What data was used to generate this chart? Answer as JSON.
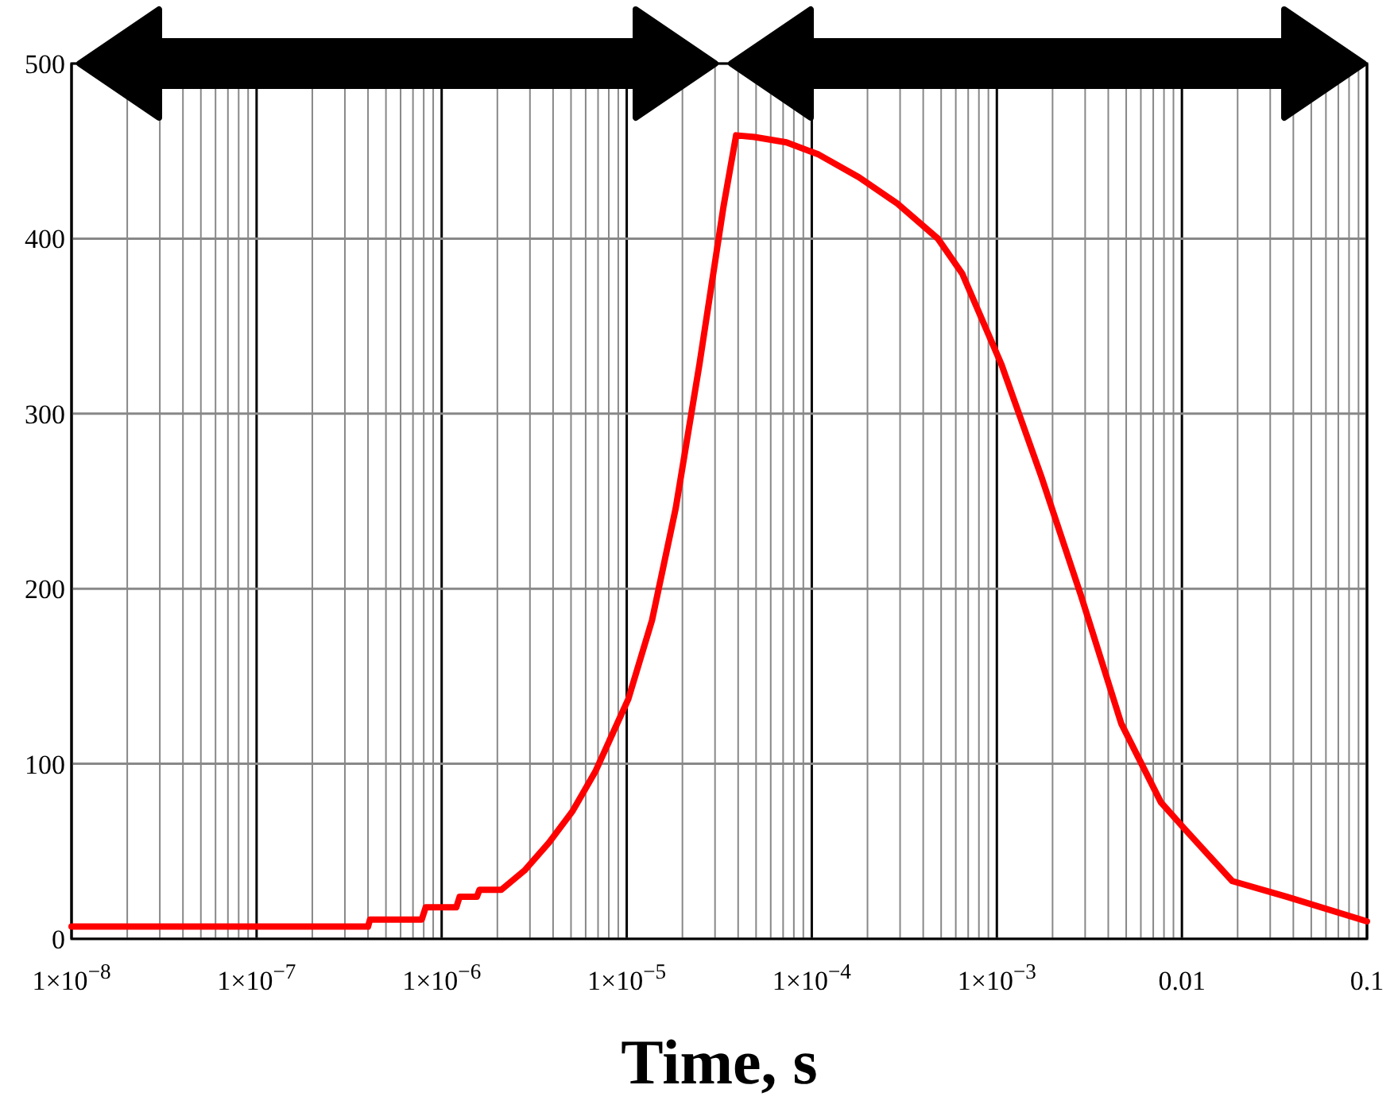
{
  "chart_data": {
    "type": "line",
    "xlabel": "Time, s",
    "log": "x",
    "grid": true,
    "marker": "none",
    "line_style": "solid",
    "xlim": [
      1e-08,
      0.1
    ],
    "ylim": [
      0,
      500
    ],
    "xticks": [
      {
        "value": 1e-08,
        "label": "1×10$^{−8}$"
      },
      {
        "value": 1e-07,
        "label": "1×10$^{−7}$"
      },
      {
        "value": 1e-06,
        "label": "1×10$^{−6}$"
      },
      {
        "value": 1e-05,
        "label": "1×10$^{−5}$"
      },
      {
        "value": 0.0001,
        "label": "1×10$^{−4}$"
      },
      {
        "value": 0.001,
        "label": "1×10$^{−3}$"
      },
      {
        "value": 0.01,
        "label": "0.01"
      },
      {
        "value": 0.1,
        "label": "0.1"
      }
    ],
    "yticks": [
      0,
      100,
      200,
      300,
      400,
      500
    ],
    "series": [
      {
        "color": "#ff0000",
        "x": [
          1e-08,
          4e-07,
          4.1e-07,
          7.8e-07,
          8.2e-07,
          1.2e-06,
          1.25e-06,
          1.55e-06,
          1.6e-06,
          2.1e-06,
          2.8e-06,
          3.8e-06,
          5.1e-06,
          6.8e-06,
          1.02e-05,
          1.37e-05,
          1.84e-05,
          2.47e-05,
          3.33e-05,
          3.9e-05,
          4.9e-05,
          7.3e-05,
          0.000109,
          0.00018,
          0.00029,
          0.00048,
          0.00065,
          0.00106,
          0.00174,
          0.00285,
          0.0047,
          0.0077,
          0.0103,
          0.0187,
          0.037,
          0.1
        ],
        "values": [
          7,
          7,
          11,
          11,
          18,
          18,
          24,
          24,
          28,
          28,
          39,
          55,
          73,
          96,
          137,
          182,
          246,
          328,
          418,
          459,
          458,
          455,
          448,
          435,
          420,
          400,
          380,
          328,
          264,
          196,
          123,
          78,
          63,
          33,
          24,
          10
        ]
      }
    ]
  }
}
